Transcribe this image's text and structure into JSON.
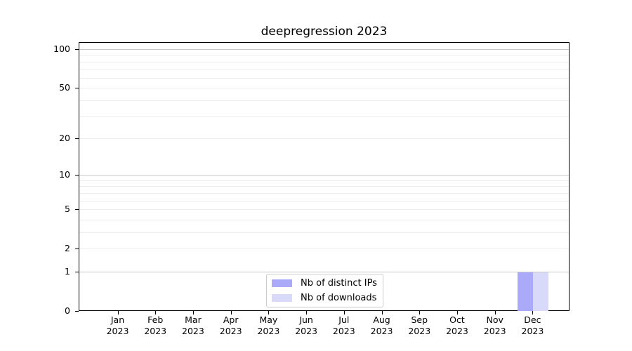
{
  "chart_data": {
    "type": "bar",
    "title": "deepregression 2023",
    "year": "2023",
    "months": [
      "Jan",
      "Feb",
      "Mar",
      "Apr",
      "May",
      "Jun",
      "Jul",
      "Aug",
      "Sep",
      "Oct",
      "Nov",
      "Dec"
    ],
    "series": [
      {
        "name": "Nb of distinct IPs",
        "color": "#aaaaf8",
        "values": [
          0,
          0,
          0,
          0,
          0,
          0,
          0,
          0,
          0,
          0,
          0,
          1
        ]
      },
      {
        "name": "Nb of downloads",
        "color": "#d9d9fa",
        "values": [
          0,
          0,
          0,
          0,
          0,
          0,
          0,
          0,
          0,
          0,
          0,
          1
        ]
      }
    ],
    "y_axis": {
      "scale": "log1p",
      "lim": [
        0,
        100
      ],
      "labeled_ticks": [
        0,
        1,
        2,
        5,
        10,
        20,
        50,
        100
      ],
      "major_gridlines": [
        1,
        10,
        100
      ],
      "minor_gridlines": [
        2,
        3,
        4,
        5,
        6,
        7,
        8,
        9,
        20,
        30,
        40,
        50,
        60,
        70,
        80,
        90
      ]
    },
    "legend_position": "bottom-center",
    "grid": "horizontal-only",
    "colors": {
      "spine": "#000000",
      "grid_major": "#c8c8c8",
      "grid_minor": "#ececec",
      "background": "#ffffff",
      "text": "#000000",
      "legend_border": "#cccccc"
    }
  }
}
